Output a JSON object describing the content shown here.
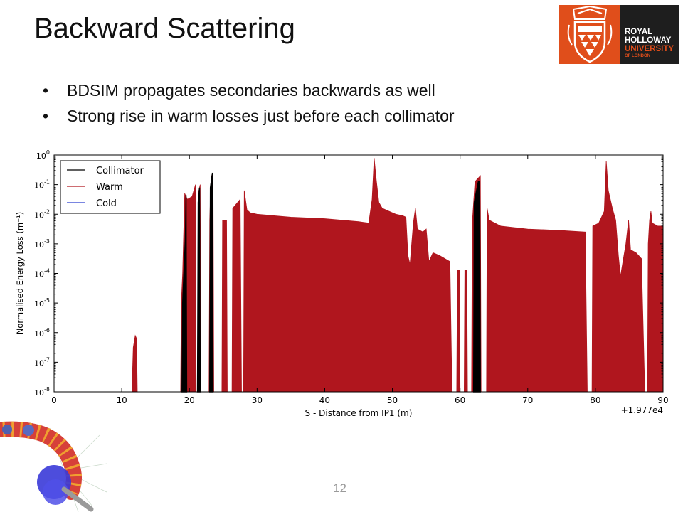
{
  "slide": {
    "title": "Backward Scattering",
    "bullets": [
      "BDSIM propagates secondaries backwards as well",
      "Strong rise in warm losses just before each collimator"
    ],
    "page_number": "12"
  },
  "logo": {
    "lines": [
      "ROYAL",
      "HOLLOWAY",
      "UNIVERSITY",
      "OF LONDON"
    ],
    "colors": {
      "orange": "#e04e1b",
      "dark": "#1e1e1e"
    }
  },
  "chart_data": {
    "type": "area",
    "ylabel": "Normalised Energy Loss (m⁻¹)",
    "xlabel": "S - Distance from IP1 (m)",
    "x_offset_label": "+1.977e4",
    "xlim": [
      0,
      90
    ],
    "ylim_log10": [
      -8,
      0
    ],
    "yscale": "log",
    "x_ticks": [
      0,
      10,
      20,
      30,
      40,
      50,
      60,
      70,
      80,
      90
    ],
    "y_ticks": [
      {
        "base": "10",
        "exp": "0"
      },
      {
        "base": "10",
        "exp": "-1"
      },
      {
        "base": "10",
        "exp": "-2"
      },
      {
        "base": "10",
        "exp": "-3"
      },
      {
        "base": "10",
        "exp": "-4"
      },
      {
        "base": "10",
        "exp": "-5"
      },
      {
        "base": "10",
        "exp": "-6"
      },
      {
        "base": "10",
        "exp": "-7"
      },
      {
        "base": "10",
        "exp": "-8"
      }
    ],
    "legend_position": "top-left",
    "series": [
      {
        "name": "Collimator",
        "color": "#000000",
        "segments": [
          [
            [
              18.9,
              -8
            ],
            [
              19.0,
              -5.0
            ],
            [
              19.2,
              -3.9
            ],
            [
              19.4,
              -2.9
            ],
            [
              19.5,
              -1.35
            ],
            [
              19.6,
              -8
            ]
          ],
          [
            [
              21.2,
              -8
            ],
            [
              21.3,
              -1.6
            ],
            [
              21.5,
              -1.1
            ],
            [
              21.6,
              -8
            ]
          ],
          [
            [
              23.0,
              -8
            ],
            [
              23.1,
              -1.1
            ],
            [
              23.4,
              -0.6
            ],
            [
              23.5,
              -8
            ]
          ],
          [
            [
              62.0,
              -8
            ],
            [
              62.1,
              -1.6
            ],
            [
              62.7,
              -0.9
            ],
            [
              62.9,
              -0.9
            ],
            [
              63.0,
              -8
            ]
          ]
        ]
      },
      {
        "name": "Warm",
        "color": "#b0161e",
        "segments": [
          [
            [
              11.5,
              -8
            ],
            [
              11.7,
              -6.5
            ],
            [
              12.0,
              -6.1
            ],
            [
              12.2,
              -6.2
            ],
            [
              12.3,
              -8
            ]
          ],
          [
            [
              18.7,
              -8
            ],
            [
              18.8,
              -5.0
            ],
            [
              19.0,
              -4.0
            ],
            [
              19.3,
              -1.3
            ],
            [
              19.7,
              -1.5
            ],
            [
              20.4,
              -1.4
            ],
            [
              20.9,
              -1.0
            ],
            [
              21.0,
              -8
            ]
          ],
          [
            [
              21.2,
              -8
            ],
            [
              21.3,
              -1.3
            ],
            [
              21.6,
              -1.0
            ],
            [
              21.7,
              -8
            ]
          ],
          [
            [
              22.9,
              -8
            ],
            [
              23.0,
              -2.2
            ],
            [
              23.2,
              -0.7
            ],
            [
              23.5,
              -0.7
            ],
            [
              23.6,
              -8
            ]
          ],
          [
            [
              24.8,
              -8
            ],
            [
              24.9,
              -2.2
            ],
            [
              25.5,
              -2.2
            ],
            [
              25.6,
              -8
            ]
          ],
          [
            [
              26.3,
              -8
            ],
            [
              26.4,
              -1.8
            ],
            [
              27.5,
              -1.5
            ],
            [
              27.7,
              -8
            ]
          ],
          [
            [
              28.0,
              -8
            ],
            [
              28.1,
              -1.2
            ],
            [
              28.5,
              -1.85
            ],
            [
              29.0,
              -1.95
            ],
            [
              30.0,
              -2.0
            ],
            [
              35.0,
              -2.1
            ],
            [
              40.0,
              -2.15
            ],
            [
              45.0,
              -2.25
            ],
            [
              46.5,
              -2.3
            ],
            [
              47.0,
              -1.5
            ],
            [
              47.3,
              -0.1
            ],
            [
              47.6,
              -0.8
            ],
            [
              48.0,
              -1.6
            ],
            [
              48.5,
              -1.8
            ],
            [
              49.5,
              -1.9
            ],
            [
              50.5,
              -2.0
            ],
            [
              51.5,
              -2.05
            ],
            [
              52.0,
              -2.1
            ],
            [
              52.3,
              -3.4
            ],
            [
              52.6,
              -3.7
            ],
            [
              53.1,
              -2.3
            ],
            [
              53.4,
              -1.8
            ],
            [
              53.7,
              -2.5
            ],
            [
              54.5,
              -2.6
            ],
            [
              55.0,
              -2.5
            ],
            [
              55.4,
              -3.6
            ],
            [
              56.0,
              -3.3
            ],
            [
              57.0,
              -3.4
            ],
            [
              58.5,
              -3.6
            ],
            [
              58.8,
              -8
            ]
          ],
          [
            [
              59.5,
              -8
            ],
            [
              59.6,
              -3.9
            ],
            [
              59.9,
              -3.9
            ],
            [
              60.0,
              -8
            ]
          ],
          [
            [
              60.6,
              -8
            ],
            [
              60.7,
              -3.9
            ],
            [
              61.0,
              -3.9
            ],
            [
              61.1,
              -8
            ]
          ],
          [
            [
              61.7,
              -8
            ],
            [
              61.8,
              -2.3
            ],
            [
              62.2,
              -0.9
            ],
            [
              63.0,
              -0.7
            ],
            [
              63.1,
              -8
            ]
          ],
          [
            [
              63.9,
              -8
            ],
            [
              64.0,
              -1.8
            ],
            [
              64.3,
              -2.2
            ],
            [
              66.0,
              -2.4
            ],
            [
              70.0,
              -2.5
            ],
            [
              75.0,
              -2.55
            ],
            [
              78.5,
              -2.6
            ],
            [
              78.8,
              -8
            ]
          ],
          [
            [
              79.5,
              -8
            ],
            [
              79.6,
              -2.4
            ],
            [
              80.5,
              -2.3
            ],
            [
              81.3,
              -1.9
            ],
            [
              81.6,
              -0.2
            ],
            [
              81.9,
              -1.2
            ],
            [
              82.5,
              -1.8
            ],
            [
              83.0,
              -2.2
            ],
            [
              83.4,
              -3.4
            ],
            [
              83.7,
              -4.1
            ],
            [
              84.5,
              -3.0
            ],
            [
              84.9,
              -2.2
            ],
            [
              85.2,
              -3.2
            ],
            [
              86.0,
              -3.3
            ],
            [
              86.8,
              -3.5
            ],
            [
              87.3,
              -8
            ]
          ],
          [
            [
              87.7,
              -8
            ],
            [
              87.8,
              -3.0
            ],
            [
              88.0,
              -2.2
            ],
            [
              88.2,
              -1.9
            ],
            [
              88.4,
              -2.3
            ],
            [
              89.2,
              -2.4
            ],
            [
              89.8,
              -2.4
            ],
            [
              90.0,
              -2.4
            ],
            [
              90.0,
              -8
            ]
          ]
        ]
      },
      {
        "name": "Cold",
        "color": "#2a3fcf",
        "segments": []
      }
    ]
  }
}
